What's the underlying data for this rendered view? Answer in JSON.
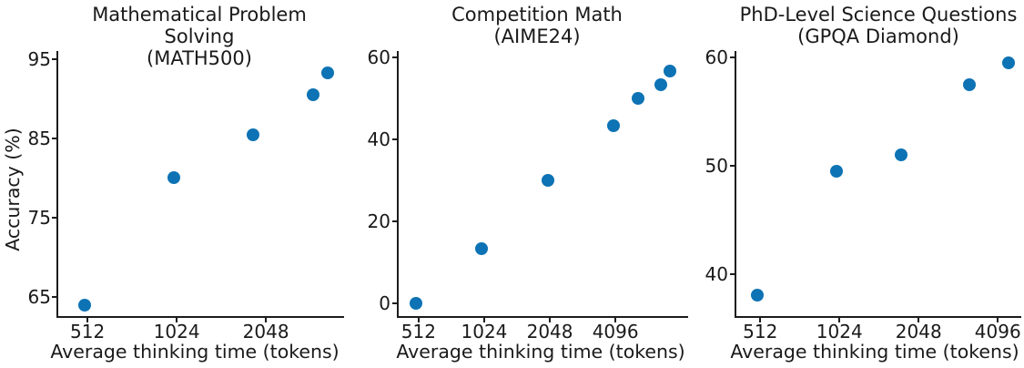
{
  "colors": {
    "marker": "#0d73b4",
    "text": "#1a1a1a",
    "spine": "#1c1c1c",
    "background": "#ffffff"
  },
  "chart_data": [
    {
      "type": "scatter",
      "title_lines": [
        "Mathematical Problem Solving",
        "(MATH500)"
      ],
      "xlabel": "Average thinking time (tokens)",
      "ylabel": "Accuracy (%)",
      "xscale": "log2",
      "grid": false,
      "legend": "none",
      "xlim": [
        405,
        3760
      ],
      "ylim": [
        62.5,
        96
      ],
      "xticks": [
        "512",
        "1024",
        "2048"
      ],
      "xtick_values": [
        512,
        1024,
        2048
      ],
      "yticks": [
        "65",
        "75",
        "85",
        "95"
      ],
      "ytick_values": [
        65,
        75,
        85,
        95
      ],
      "points": [
        [
          500,
          64
        ],
        [
          1000,
          80
        ],
        [
          1850,
          85.5
        ],
        [
          2950,
          90.5
        ],
        [
          3300,
          93.2
        ]
      ]
    },
    {
      "type": "scatter",
      "title_lines": [
        "Competition Math",
        "(AIME24)"
      ],
      "xlabel": "Average thinking time (tokens)",
      "ylabel": "",
      "xscale": "log2",
      "grid": false,
      "legend": "none",
      "xlim": [
        411,
        8740
      ],
      "ylim": [
        -3,
        61.5
      ],
      "xticks": [
        "512",
        "1024",
        "2048",
        "4096"
      ],
      "xtick_values": [
        512,
        1024,
        2048,
        4096
      ],
      "yticks": [
        "0",
        "20",
        "40",
        "60"
      ],
      "ytick_values": [
        0,
        20,
        40,
        60
      ],
      "points": [
        [
          500,
          0
        ],
        [
          1000,
          13.3
        ],
        [
          2000,
          30
        ],
        [
          4000,
          43.3
        ],
        [
          5200,
          50
        ],
        [
          6600,
          53.3
        ],
        [
          7300,
          56.7
        ]
      ]
    },
    {
      "type": "scatter",
      "title_lines": [
        "PhD-Level Science Questions",
        "(GPQA Diamond)"
      ],
      "xlabel": "Average thinking time (tokens)",
      "ylabel": "",
      "xscale": "log2",
      "grid": false,
      "legend": "none",
      "xlim": [
        412,
        5030
      ],
      "ylim": [
        36.1,
        60.6
      ],
      "xticks": [
        "512",
        "1024",
        "2048",
        "4096"
      ],
      "xtick_values": [
        512,
        1024,
        2048,
        4096
      ],
      "yticks": [
        "40",
        "50",
        "60"
      ],
      "ytick_values": [
        40,
        50,
        60
      ],
      "points": [
        [
          500,
          38
        ],
        [
          1000,
          49.5
        ],
        [
          1750,
          51
        ],
        [
          3200,
          57.5
        ],
        [
          4500,
          59.5
        ]
      ]
    }
  ]
}
